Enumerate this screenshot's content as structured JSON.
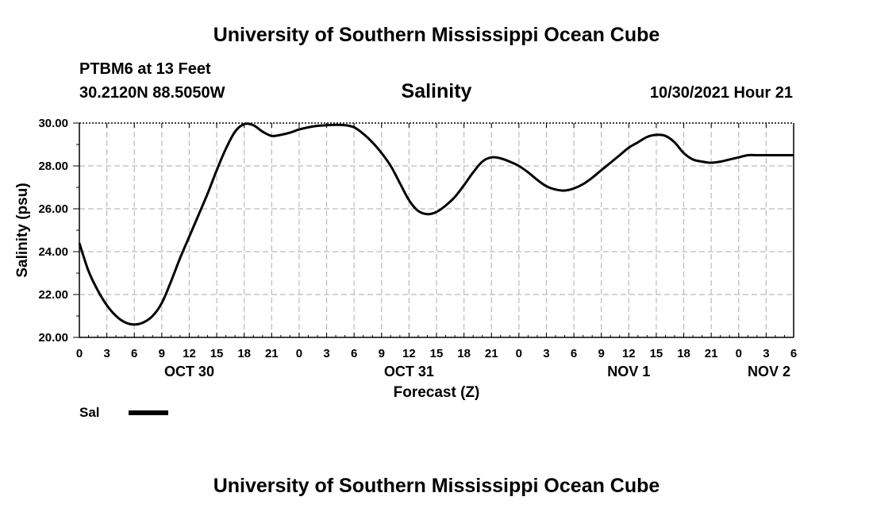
{
  "header": {
    "title": "University of Southern Mississippi Ocean Cube",
    "station": "PTBM6 at 13 Feet",
    "coordinates": "30.2120N  88.5050W",
    "run_time": "10/30/2021 Hour 21"
  },
  "footer": {
    "title": "University of Southern Mississippi Ocean Cube"
  },
  "legend": {
    "items": [
      {
        "label": "Sal",
        "color": "#000000"
      }
    ]
  },
  "chart_data": {
    "type": "line",
    "title": "Salinity",
    "xlabel": "Forecast (Z)",
    "ylabel": "Salinity (psu)",
    "ylim": [
      20,
      30
    ],
    "y_ticks": [
      "20.00",
      "22.00",
      "24.00",
      "26.00",
      "28.00",
      "30.00"
    ],
    "x_range_hours": [
      0,
      78
    ],
    "x_tick_labels": [
      "0",
      "3",
      "6",
      "9",
      "12",
      "15",
      "18",
      "21",
      "0",
      "3",
      "6",
      "9",
      "12",
      "15",
      "18",
      "21",
      "0",
      "3",
      "6",
      "9",
      "12",
      "15",
      "18",
      "21",
      "0",
      "3",
      "6"
    ],
    "date_labels": [
      {
        "label": "OCT 30",
        "hour": 12
      },
      {
        "label": "OCT 31",
        "hour": 36
      },
      {
        "label": "NOV 1",
        "hour": 60
      },
      {
        "label": "NOV 2",
        "hour": 78
      }
    ],
    "grid": true,
    "legend_position": "bottom-left",
    "series": [
      {
        "name": "Sal",
        "color": "#000000",
        "x": [
          0,
          1,
          2,
          3,
          4,
          5,
          6,
          7,
          8,
          9,
          10,
          11,
          12,
          13,
          14,
          15,
          16,
          17,
          18,
          19,
          20,
          21,
          22,
          23,
          24,
          25,
          26,
          27,
          28,
          29,
          30,
          31,
          32,
          33,
          34,
          35,
          36,
          37,
          38,
          39,
          40,
          41,
          42,
          43,
          44,
          45,
          46,
          47,
          48,
          49,
          50,
          51,
          52,
          53,
          54,
          55,
          56,
          57,
          58,
          59,
          60,
          61,
          62,
          63,
          64,
          65,
          66,
          67,
          68,
          69,
          70,
          71,
          72,
          73,
          74,
          75,
          76,
          77,
          78
        ],
        "values": [
          24.4,
          23.1,
          22.2,
          21.5,
          21.0,
          20.7,
          20.6,
          20.7,
          21.0,
          21.6,
          22.6,
          23.7,
          24.7,
          25.7,
          26.7,
          27.8,
          28.8,
          29.6,
          29.95,
          29.9,
          29.6,
          29.4,
          29.45,
          29.55,
          29.7,
          29.8,
          29.87,
          29.9,
          29.92,
          29.9,
          29.8,
          29.5,
          29.1,
          28.6,
          28.0,
          27.2,
          26.4,
          25.9,
          25.75,
          25.85,
          26.15,
          26.55,
          27.1,
          27.7,
          28.2,
          28.4,
          28.35,
          28.2,
          28.0,
          27.7,
          27.35,
          27.05,
          26.9,
          26.85,
          26.95,
          27.15,
          27.45,
          27.8,
          28.15,
          28.5,
          28.85,
          29.1,
          29.35,
          29.45,
          29.4,
          29.1,
          28.6,
          28.3,
          28.2,
          28.15,
          28.2,
          28.3,
          28.4,
          28.5,
          28.5,
          28.5,
          28.5,
          28.5,
          28.5
        ]
      }
    ]
  }
}
